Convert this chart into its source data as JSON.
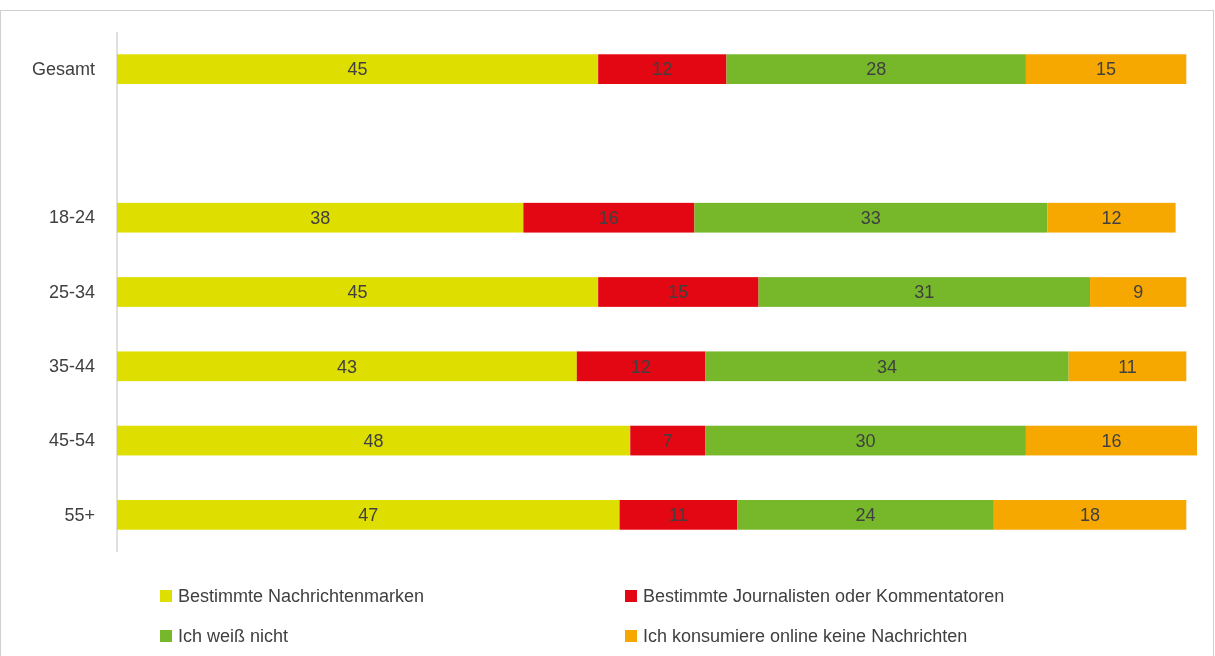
{
  "chart_data": {
    "type": "bar",
    "orientation": "horizontal",
    "stacked": true,
    "categories": [
      "Gesamt",
      null,
      "18-24",
      "25-34",
      "35-44",
      "45-54",
      "55+"
    ],
    "series": [
      {
        "name": "Bestimmte Nachrichtenmarken",
        "color": "#dede00",
        "values": [
          45,
          null,
          38,
          45,
          43,
          48,
          47
        ]
      },
      {
        "name": "Bestimmte Journalisten oder Kommentatoren",
        "color": "#e30613",
        "values": [
          12,
          null,
          16,
          15,
          12,
          7,
          11
        ]
      },
      {
        "name": "Ich weiß nicht",
        "color": "#76b82a",
        "values": [
          28,
          null,
          33,
          31,
          34,
          30,
          24
        ]
      },
      {
        "name": "Ich konsumiere online keine Nachrichten",
        "color": "#f6a800",
        "values": [
          15,
          null,
          12,
          9,
          11,
          16,
          18
        ]
      }
    ],
    "data_labels": true,
    "legend": "bottom"
  }
}
